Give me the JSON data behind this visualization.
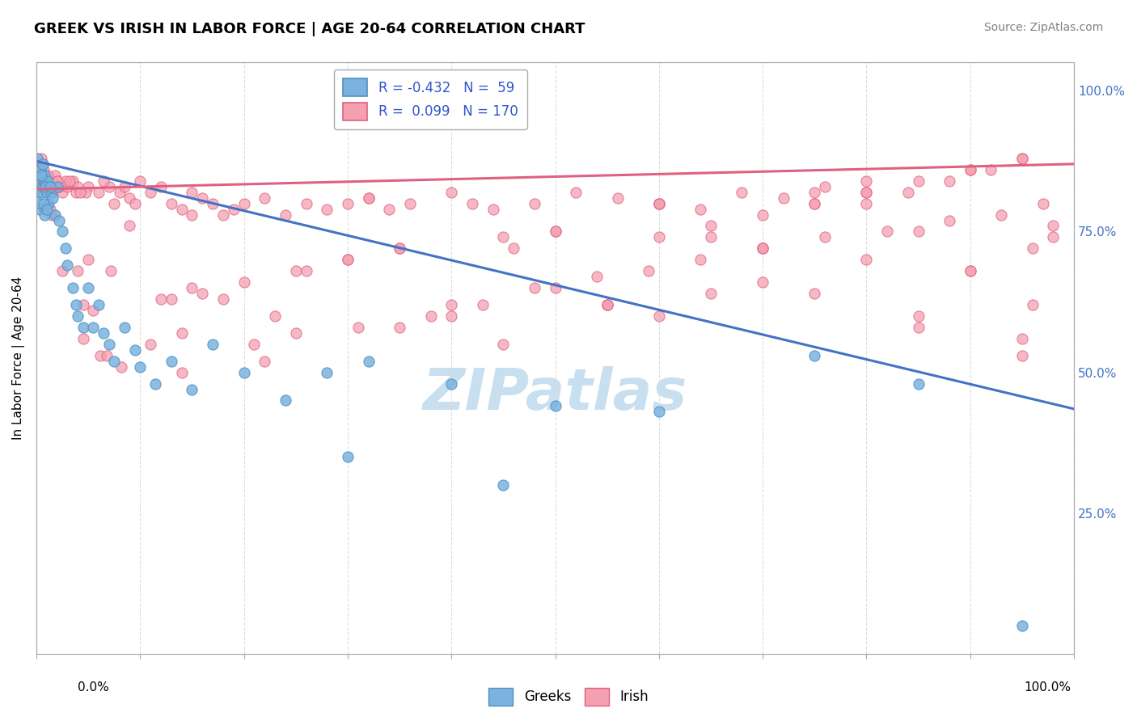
{
  "title": "GREEK VS IRISH IN LABOR FORCE | AGE 20-64 CORRELATION CHART",
  "source": "Source: ZipAtlas.com",
  "ylabel": "In Labor Force | Age 20-64",
  "right_yticks": [
    0.25,
    0.5,
    0.75,
    1.0
  ],
  "right_yticklabels": [
    "25.0%",
    "50.0%",
    "75.0%",
    "100.0%"
  ],
  "watermark": "ZIPatlas",
  "legend_entries": [
    {
      "label": "Greeks",
      "R": -0.432,
      "N": 59,
      "color": "#7ab3e0",
      "edgecolor": "#5090c0"
    },
    {
      "label": "Irish",
      "R": 0.099,
      "N": 170,
      "color": "#f4a0b0",
      "edgecolor": "#e06080"
    }
  ],
  "greek_scatter_x": [
    0.001,
    0.002,
    0.003,
    0.003,
    0.004,
    0.005,
    0.006,
    0.007,
    0.008,
    0.009,
    0.01,
    0.011,
    0.012,
    0.014,
    0.016,
    0.018,
    0.02,
    0.025,
    0.03,
    0.035,
    0.04,
    0.05,
    0.06,
    0.07,
    0.085,
    0.1,
    0.13,
    0.15,
    0.2,
    0.24,
    0.28,
    0.32,
    0.4,
    0.5,
    0.6,
    0.75,
    0.85,
    0.003,
    0.004,
    0.005,
    0.006,
    0.007,
    0.008,
    0.009,
    0.01,
    0.013,
    0.022,
    0.028,
    0.038,
    0.045,
    0.055,
    0.065,
    0.075,
    0.095,
    0.115,
    0.17,
    0.95,
    0.45,
    0.3
  ],
  "greek_scatter_y": [
    0.88,
    0.82,
    0.83,
    0.85,
    0.86,
    0.82,
    0.83,
    0.84,
    0.85,
    0.84,
    0.82,
    0.84,
    0.8,
    0.82,
    0.81,
    0.78,
    0.83,
    0.75,
    0.69,
    0.65,
    0.6,
    0.65,
    0.62,
    0.55,
    0.58,
    0.51,
    0.52,
    0.47,
    0.5,
    0.45,
    0.5,
    0.52,
    0.48,
    0.44,
    0.43,
    0.53,
    0.48,
    0.79,
    0.8,
    0.85,
    0.87,
    0.8,
    0.78,
    0.83,
    0.79,
    0.83,
    0.77,
    0.72,
    0.62,
    0.58,
    0.58,
    0.57,
    0.52,
    0.54,
    0.48,
    0.55,
    0.05,
    0.3,
    0.35
  ],
  "irish_scatter_x": [
    0.002,
    0.003,
    0.004,
    0.005,
    0.006,
    0.007,
    0.008,
    0.009,
    0.01,
    0.012,
    0.014,
    0.016,
    0.018,
    0.02,
    0.025,
    0.03,
    0.035,
    0.04,
    0.05,
    0.06,
    0.07,
    0.08,
    0.09,
    0.1,
    0.12,
    0.14,
    0.16,
    0.18,
    0.2,
    0.22,
    0.24,
    0.26,
    0.28,
    0.3,
    0.32,
    0.34,
    0.36,
    0.4,
    0.44,
    0.48,
    0.52,
    0.56,
    0.6,
    0.64,
    0.68,
    0.72,
    0.76,
    0.8,
    0.84,
    0.88,
    0.92,
    0.95,
    0.003,
    0.005,
    0.007,
    0.009,
    0.015,
    0.022,
    0.028,
    0.038,
    0.048,
    0.055,
    0.065,
    0.075,
    0.085,
    0.095,
    0.11,
    0.13,
    0.15,
    0.17,
    0.19,
    0.21,
    0.25,
    0.3,
    0.35,
    0.42,
    0.46,
    0.5,
    0.55,
    0.6,
    0.65,
    0.7,
    0.75,
    0.8,
    0.85,
    0.9,
    0.95,
    0.98,
    0.032,
    0.042,
    0.062,
    0.072,
    0.082,
    0.11,
    0.16,
    0.2,
    0.26,
    0.32,
    0.38,
    0.43,
    0.48,
    0.54,
    0.59,
    0.64,
    0.7,
    0.76,
    0.82,
    0.88,
    0.93,
    0.97,
    0.004,
    0.006,
    0.008,
    0.011,
    0.013,
    0.025,
    0.045,
    0.13,
    0.45,
    0.65,
    0.75,
    0.85,
    0.55,
    0.7,
    0.8,
    0.9,
    0.96,
    0.98,
    0.045,
    0.068,
    0.14,
    0.22,
    0.31,
    0.4,
    0.5,
    0.6,
    0.7,
    0.8,
    0.9,
    0.96,
    0.14,
    0.3,
    0.5,
    0.7,
    0.9,
    0.35,
    0.55,
    0.75,
    0.85,
    0.95,
    0.15,
    0.25,
    0.45,
    0.6,
    0.75,
    0.85,
    0.95,
    0.02,
    0.04,
    0.09,
    0.12,
    0.18,
    0.23,
    0.4,
    0.6,
    0.8,
    0.05,
    0.15,
    0.35,
    0.65
  ],
  "irish_scatter_y": [
    0.87,
    0.84,
    0.83,
    0.88,
    0.87,
    0.85,
    0.83,
    0.85,
    0.82,
    0.83,
    0.83,
    0.82,
    0.85,
    0.84,
    0.82,
    0.83,
    0.84,
    0.83,
    0.83,
    0.82,
    0.83,
    0.82,
    0.81,
    0.84,
    0.83,
    0.79,
    0.81,
    0.78,
    0.8,
    0.81,
    0.78,
    0.8,
    0.79,
    0.8,
    0.81,
    0.79,
    0.8,
    0.82,
    0.79,
    0.8,
    0.82,
    0.81,
    0.8,
    0.79,
    0.82,
    0.81,
    0.83,
    0.8,
    0.82,
    0.84,
    0.86,
    0.88,
    0.86,
    0.84,
    0.86,
    0.83,
    0.78,
    0.83,
    0.84,
    0.82,
    0.82,
    0.61,
    0.84,
    0.8,
    0.83,
    0.8,
    0.82,
    0.8,
    0.82,
    0.8,
    0.79,
    0.55,
    0.68,
    0.7,
    0.72,
    0.8,
    0.72,
    0.75,
    0.62,
    0.74,
    0.76,
    0.78,
    0.8,
    0.82,
    0.84,
    0.86,
    0.88,
    0.74,
    0.84,
    0.82,
    0.53,
    0.68,
    0.51,
    0.55,
    0.64,
    0.66,
    0.68,
    0.81,
    0.6,
    0.62,
    0.65,
    0.67,
    0.68,
    0.7,
    0.72,
    0.74,
    0.75,
    0.77,
    0.78,
    0.8,
    0.85,
    0.83,
    0.79,
    0.85,
    0.79,
    0.68,
    0.62,
    0.63,
    0.74,
    0.64,
    0.8,
    0.6,
    0.62,
    0.66,
    0.82,
    0.86,
    0.72,
    0.76,
    0.56,
    0.53,
    0.5,
    0.52,
    0.58,
    0.6,
    0.75,
    0.8,
    0.72,
    0.7,
    0.68,
    0.62,
    0.57,
    0.7,
    0.65,
    0.72,
    0.68,
    0.58,
    0.62,
    0.82,
    0.75,
    0.56,
    0.78,
    0.57,
    0.55,
    0.6,
    0.64,
    0.58,
    0.53,
    0.84,
    0.68,
    0.76,
    0.63,
    0.63,
    0.6,
    0.62,
    0.8,
    0.84,
    0.7,
    0.65,
    0.72,
    0.74
  ],
  "greek_line_x": [
    0.0,
    1.0
  ],
  "greek_line_y": [
    0.875,
    0.435
  ],
  "irish_line_x": [
    0.0,
    1.0
  ],
  "irish_line_y": [
    0.825,
    0.87
  ],
  "xlim": [
    0.0,
    1.0
  ],
  "ylim": [
    0.0,
    1.05
  ],
  "title_fontsize": 13,
  "source_fontsize": 10,
  "axis_color": "#aaaaaa",
  "grid_color": "#dddddd",
  "watermark_color": "#c8dff0",
  "watermark_fontsize": 52
}
